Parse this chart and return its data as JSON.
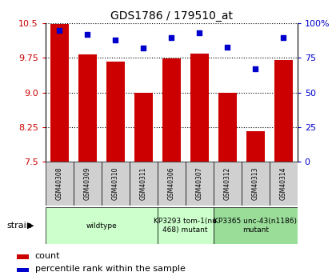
{
  "title": "GDS1786 / 179510_at",
  "samples": [
    "GSM40308",
    "GSM40309",
    "GSM40310",
    "GSM40311",
    "GSM40306",
    "GSM40307",
    "GSM40312",
    "GSM40313",
    "GSM40314"
  ],
  "counts": [
    10.48,
    9.83,
    9.67,
    9.0,
    9.74,
    9.84,
    9.0,
    8.15,
    9.7
  ],
  "percentiles": [
    95,
    92,
    88,
    82,
    90,
    93,
    83,
    67,
    90
  ],
  "ylim_left": [
    7.5,
    10.5
  ],
  "yticks_left": [
    7.5,
    8.25,
    9.0,
    9.75,
    10.5
  ],
  "ylim_right": [
    0,
    100
  ],
  "yticks_right": [
    0,
    25,
    50,
    75,
    100
  ],
  "yticklabels_right": [
    "0",
    "25",
    "50",
    "75",
    "100%"
  ],
  "bar_color": "#cc0000",
  "dot_color": "#0000cc",
  "bar_width": 0.65,
  "groups": [
    {
      "label": "wildtype",
      "indices": [
        0,
        1,
        2,
        3
      ],
      "color": "#ccffcc"
    },
    {
      "label": "KP3293 tom-1(nu\n468) mutant",
      "indices": [
        4,
        5
      ],
      "color": "#ccffcc"
    },
    {
      "label": "KP3365 unc-43(n1186)\nmutant",
      "indices": [
        6,
        7,
        8
      ],
      "color": "#99dd99"
    }
  ],
  "legend_count_label": "count",
  "legend_pct_label": "percentile rank within the sample",
  "strain_label": "strain",
  "background_color": "#ffffff"
}
